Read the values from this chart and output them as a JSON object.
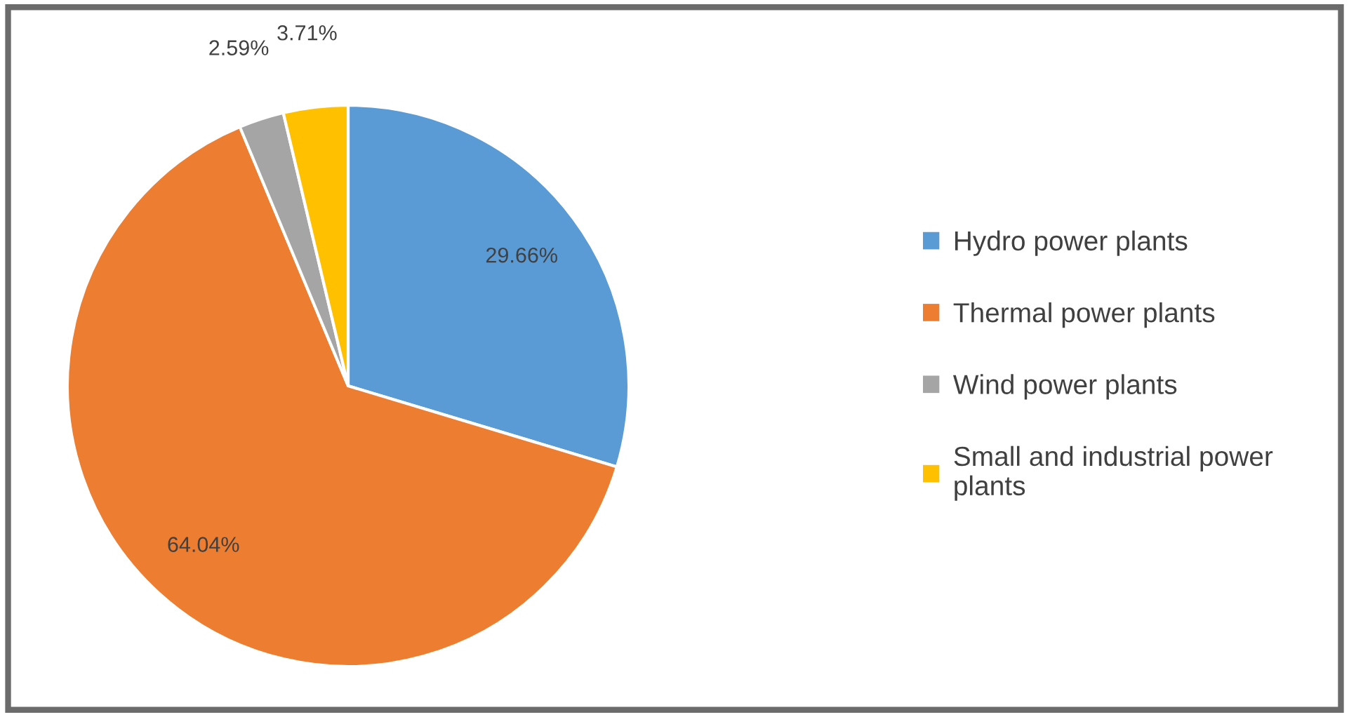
{
  "chart_data": {
    "type": "pie",
    "categories": [
      "Hydro power plants",
      "Thermal power plants",
      "Wind power plants",
      "Small and industrial power plants"
    ],
    "values": [
      29.66,
      64.04,
      2.59,
      3.71
    ],
    "colors": [
      "#5b9bd5",
      "#ed7d31",
      "#a5a5a5",
      "#ffc000"
    ],
    "value_labels": [
      "29.66%",
      "64.04%",
      "2.59%",
      "3.71%"
    ],
    "legend": "right"
  }
}
